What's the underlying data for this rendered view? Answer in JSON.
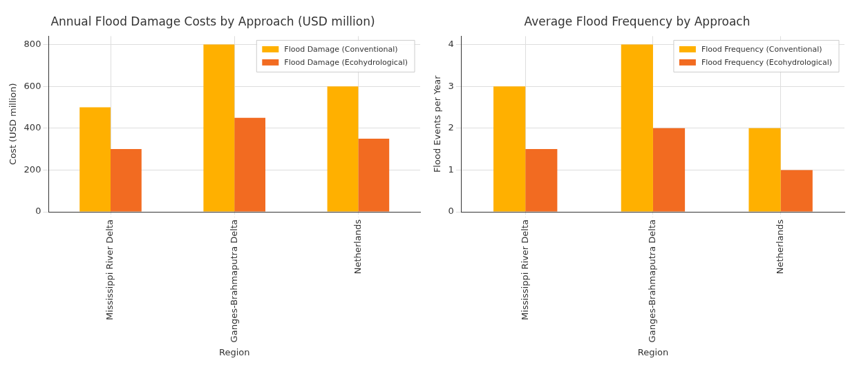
{
  "chart_data": [
    {
      "type": "bar",
      "title": "Annual Flood Damage Costs by Approach (USD million)",
      "xlabel": "Region",
      "ylabel": "Cost (USD million)",
      "categories": [
        "Mississippi River Delta",
        "Ganges-Brahmaputra Delta",
        "Netherlands"
      ],
      "series": [
        {
          "name": "Flood Damage (Conventional)",
          "color": "#ffb000",
          "values": [
            500,
            800,
            600
          ]
        },
        {
          "name": "Flood Damage (Ecohydrological)",
          "color": "#f26b21",
          "values": [
            300,
            450,
            350
          ]
        }
      ],
      "ylim": [
        0,
        840
      ],
      "yticks": [
        0,
        200,
        400,
        600,
        800
      ],
      "grid": true,
      "legend": "top right"
    },
    {
      "type": "bar",
      "title": "Average Flood Frequency by Approach",
      "xlabel": "Region",
      "ylabel": "Flood Events per Year",
      "categories": [
        "Mississippi River Delta",
        "Ganges-Brahmaputra Delta",
        "Netherlands"
      ],
      "series": [
        {
          "name": "Flood Frequency (Conventional)",
          "color": "#ffb000",
          "values": [
            3,
            4,
            2
          ]
        },
        {
          "name": "Flood Frequency (Ecohydrological)",
          "color": "#f26b21",
          "values": [
            1.5,
            2,
            1
          ]
        }
      ],
      "ylim": [
        0,
        4.2
      ],
      "yticks": [
        0,
        1,
        2,
        3,
        4
      ],
      "grid": true,
      "legend": "top right"
    }
  ]
}
